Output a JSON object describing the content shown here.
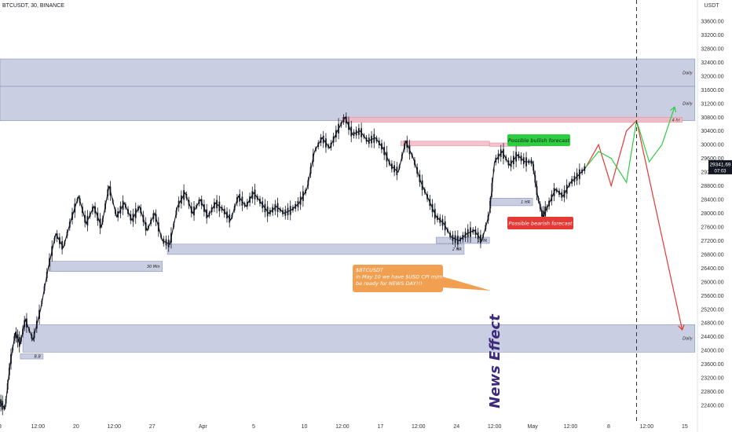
{
  "header": {
    "symbol_line": "BTCUSDT, 30, BINANCE",
    "currency": "USDT"
  },
  "price_badge": {
    "price": "29341.69",
    "countdown": "07:03",
    "value": 29341.69
  },
  "colors": {
    "candle": "#131722",
    "zone_fill": "#b8bed8",
    "zone_border": "#8a93b8",
    "supply_fill": "#f4b8c4",
    "bull_green": "#2ecc40",
    "bear_red": "#e53935",
    "news_orange": "#f0a050",
    "news_text": "#3d2a7a"
  },
  "chart_data": {
    "type": "candlestick",
    "symbol": "BTCUSDT",
    "interval": "30",
    "exchange": "BINANCE",
    "y_axis": {
      "label": "USDT",
      "ylim": [
        22000,
        34000
      ],
      "ticks": [
        "33600.00",
        "33200.00",
        "32800.00",
        "32400.00",
        "32000.00",
        "31600.00",
        "31200.00",
        "30800.00",
        "30400.00",
        "30000.00",
        "29600.00",
        "29200.00",
        "28800.00",
        "28400.00",
        "28000.00",
        "27600.00",
        "27200.00",
        "26800.00",
        "26400.00",
        "26000.00",
        "25600.00",
        "25200.00",
        "24800.00",
        "24400.00",
        "24000.00",
        "23600.00",
        "23200.00",
        "22800.00",
        "22400.00"
      ]
    },
    "x_axis": {
      "ticks": [
        {
          "label": "3",
          "x": 0
        },
        {
          "label": "12:00",
          "x": 1.5
        },
        {
          "label": "20",
          "x": 3
        },
        {
          "label": "12:00",
          "x": 4.5
        },
        {
          "label": "27",
          "x": 6
        },
        {
          "label": "Apr",
          "x": 8
        },
        {
          "label": "5",
          "x": 10
        },
        {
          "label": "10",
          "x": 12
        },
        {
          "label": "12:00",
          "x": 13.5
        },
        {
          "label": "17",
          "x": 15
        },
        {
          "label": "12:00",
          "x": 16.5
        },
        {
          "label": "24",
          "x": 18
        },
        {
          "label": "12:00",
          "x": 19.5
        },
        {
          "label": "May",
          "x": 21
        },
        {
          "label": "12:00",
          "x": 22.5
        },
        {
          "label": "8",
          "x": 24
        },
        {
          "label": "12:00",
          "x": 25.5
        },
        {
          "label": "15",
          "x": 27
        }
      ],
      "xlim": [
        0,
        27.5
      ]
    },
    "price_path": [
      [
        0,
        22500
      ],
      [
        0.2,
        22300
      ],
      [
        0.4,
        23600
      ],
      [
        0.6,
        24500
      ],
      [
        0.8,
        24200
      ],
      [
        1,
        24900
      ],
      [
        1.3,
        24300
      ],
      [
        1.6,
        25200
      ],
      [
        1.9,
        26400
      ],
      [
        2.2,
        27400
      ],
      [
        2.5,
        27000
      ],
      [
        2.8,
        27800
      ],
      [
        3.1,
        28500
      ],
      [
        3.4,
        27700
      ],
      [
        3.7,
        28200
      ],
      [
        4,
        27600
      ],
      [
        4.3,
        28800
      ],
      [
        4.6,
        27900
      ],
      [
        4.9,
        28300
      ],
      [
        5.2,
        27800
      ],
      [
        5.5,
        28200
      ],
      [
        5.8,
        27500
      ],
      [
        6.1,
        28000
      ],
      [
        6.4,
        27200
      ],
      [
        6.7,
        27100
      ],
      [
        7,
        28200
      ],
      [
        7.3,
        28600
      ],
      [
        7.6,
        28000
      ],
      [
        7.9,
        28400
      ],
      [
        8.2,
        27900
      ],
      [
        8.5,
        28300
      ],
      [
        8.8,
        28100
      ],
      [
        9.1,
        27800
      ],
      [
        9.4,
        28500
      ],
      [
        9.7,
        28200
      ],
      [
        10,
        28600
      ],
      [
        10.3,
        28300
      ],
      [
        10.6,
        28000
      ],
      [
        10.9,
        28200
      ],
      [
        11.2,
        28000
      ],
      [
        11.5,
        28100
      ],
      [
        11.8,
        28300
      ],
      [
        12.1,
        28700
      ],
      [
        12.4,
        29800
      ],
      [
        12.7,
        30200
      ],
      [
        13,
        29900
      ],
      [
        13.3,
        30400
      ],
      [
        13.6,
        30800
      ],
      [
        13.9,
        30300
      ],
      [
        14.2,
        30400
      ],
      [
        14.5,
        30100
      ],
      [
        14.8,
        30200
      ],
      [
        15.1,
        29900
      ],
      [
        15.4,
        29400
      ],
      [
        15.7,
        29200
      ],
      [
        16,
        30100
      ],
      [
        16.3,
        29600
      ],
      [
        16.6,
        28900
      ],
      [
        16.9,
        28400
      ],
      [
        17.2,
        27900
      ],
      [
        17.5,
        27700
      ],
      [
        17.8,
        27300
      ],
      [
        18.1,
        27200
      ],
      [
        18.4,
        27400
      ],
      [
        18.7,
        27500
      ],
      [
        19,
        27200
      ],
      [
        19.3,
        28000
      ],
      [
        19.5,
        29500
      ],
      [
        19.8,
        29800
      ],
      [
        20.1,
        29400
      ],
      [
        20.4,
        29700
      ],
      [
        20.7,
        29500
      ],
      [
        21,
        29500
      ],
      [
        21.2,
        28500
      ],
      [
        21.4,
        27900
      ],
      [
        21.6,
        28200
      ],
      [
        21.9,
        28700
      ],
      [
        22.2,
        28500
      ],
      [
        22.5,
        28900
      ],
      [
        22.8,
        29100
      ],
      [
        23.1,
        29341
      ]
    ],
    "forecast": {
      "bearish_zigzag": [
        [
          23.1,
          29341
        ],
        [
          23.6,
          30000
        ],
        [
          24.1,
          28800
        ],
        [
          24.7,
          30400
        ],
        [
          25.1,
          30700
        ],
        [
          26.9,
          24600
        ]
      ],
      "bullish_zigzag": [
        [
          23.1,
          29341
        ],
        [
          23.6,
          29800
        ],
        [
          24.1,
          29600
        ],
        [
          24.7,
          28900
        ],
        [
          25.1,
          30700
        ],
        [
          25.6,
          29500
        ],
        [
          26.1,
          30000
        ],
        [
          26.6,
          31100
        ]
      ]
    },
    "news_event_x": 25.1,
    "annotations": [
      {
        "kind": "zone",
        "label": "Daily",
        "y1": 31700,
        "y2": 32500,
        "x1": 0,
        "x2": 27.4
      },
      {
        "kind": "zone",
        "label": "Daily",
        "y1": 30700,
        "y2": 31700,
        "x1": 0,
        "x2": 27.4
      },
      {
        "kind": "zone",
        "label": "4 hr",
        "y1": 30650,
        "y2": 30800,
        "x1": 13.5,
        "x2": 26.9,
        "supply": true
      },
      {
        "kind": "zone",
        "label": "",
        "y1": 29970,
        "y2": 30100,
        "x1": 15.8,
        "x2": 19.3,
        "supply": true
      },
      {
        "kind": "zone",
        "label": "",
        "y1": 29950,
        "y2": 30050,
        "x1": 19.3,
        "x2": 20.9,
        "supply": true
      },
      {
        "kind": "zone",
        "label": "1 HR",
        "y1": 28220,
        "y2": 28440,
        "x1": 19.3,
        "x2": 21,
        "supply": false
      },
      {
        "kind": "zone",
        "label": "1 HR",
        "y1": 27120,
        "y2": 27300,
        "x1": 17.2,
        "x2": 19.3,
        "supply": false
      },
      {
        "kind": "zone",
        "label": "2 HR",
        "y1": 26800,
        "y2": 27100,
        "x1": 6.6,
        "x2": 18.3,
        "supply": false
      },
      {
        "kind": "zone",
        "label": "30 Min",
        "y1": 26300,
        "y2": 26600,
        "x1": 2,
        "x2": 6.4,
        "supply": false
      },
      {
        "kind": "zone",
        "label": "Daily",
        "y1": 23950,
        "y2": 24750,
        "x1": 0.9,
        "x2": 27.4
      },
      {
        "kind": "zone",
        "label": "B.B",
        "y1": 23750,
        "y2": 23900,
        "x1": 0.8,
        "x2": 1.7,
        "supply": false
      }
    ],
    "callouts": {
      "bullish": "Possible bullish forecast",
      "bearish": "Possible bearish forecast",
      "news_lines": [
        "$BTCUSDT",
        "in May 10 we have $USD CPI m/m !!!",
        "be ready for NEWS DAY!!!"
      ],
      "news_effect": "News Effect"
    }
  }
}
